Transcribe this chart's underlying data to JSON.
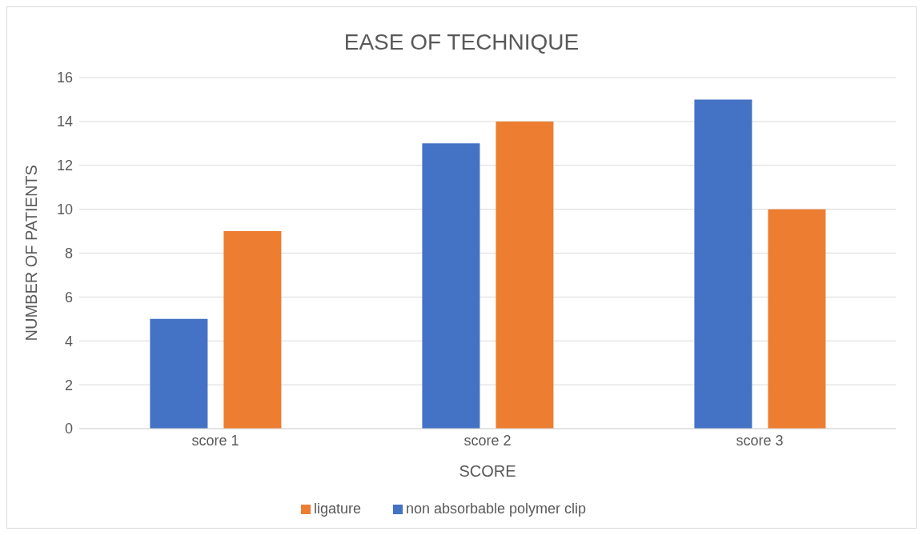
{
  "chart_data": {
    "type": "bar",
    "title": "EASE OF TECHNIQUE",
    "xlabel": "SCORE",
    "ylabel": "NUMBER OF PATIENTS",
    "categories": [
      "score 1",
      "score 2",
      "score 3"
    ],
    "series": [
      {
        "name": "non absorbable polymer clip",
        "color": "#4472c4",
        "values": [
          5,
          13,
          15
        ]
      },
      {
        "name": "ligature",
        "color": "#ed7d31",
        "values": [
          9,
          14,
          10
        ]
      }
    ],
    "ylim": [
      0,
      16
    ],
    "yticks": [
      0,
      2,
      4,
      6,
      8,
      10,
      12,
      14,
      16
    ],
    "grid": "y",
    "legend": "bottom"
  }
}
